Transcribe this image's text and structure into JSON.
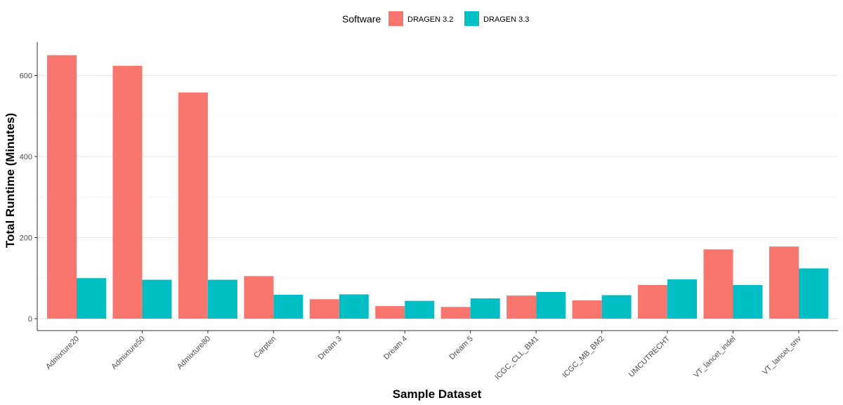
{
  "chart_data": {
    "type": "bar",
    "title": "",
    "xlabel": "Sample Dataset",
    "ylabel": "Total Runtime (Minutes)",
    "ylim": [
      0,
      680
    ],
    "yticks": [
      0,
      200,
      400,
      600
    ],
    "grid": "horizontal",
    "legend": {
      "title": "Software",
      "position": "top"
    },
    "categories": [
      "Admixture20",
      "Admixture50",
      "Admixture80",
      "Carpten",
      "Dream 3",
      "Dream 4",
      "Dream 5",
      "ICGC_CLL_BM1",
      "ICGC_MB_BM2",
      "UMCUTRECHT",
      "VT_lancet_indel",
      "VT_lancet_snv"
    ],
    "series": [
      {
        "name": "DRAGEN 3.2",
        "color": "#F8766D",
        "values": [
          650,
          624,
          558,
          105,
          48,
          31,
          29,
          57,
          45,
          83,
          171,
          178
        ]
      },
      {
        "name": "DRAGEN 3.3",
        "color": "#00BFC4",
        "values": [
          100,
          96,
          96,
          59,
          60,
          44,
          50,
          66,
          58,
          97,
          83,
          124
        ]
      }
    ]
  }
}
